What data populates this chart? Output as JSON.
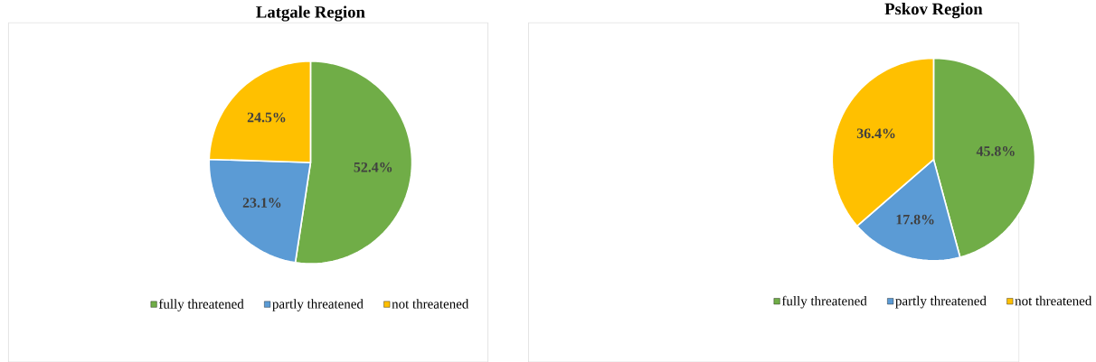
{
  "chart_data": [
    {
      "type": "pie",
      "title": "Latgale Region",
      "categories": [
        "fully threatened",
        "partly threatened",
        "not threatened"
      ],
      "values": [
        52.4,
        23.1,
        24.5
      ],
      "value_labels": [
        "52.4%",
        "23.1%",
        "24.5%"
      ],
      "colors": [
        "#70ad47",
        "#5b9bd5",
        "#ffc000"
      ],
      "legend": "bottom"
    },
    {
      "type": "pie",
      "title": "Pskov Region",
      "categories": [
        "fully threatened",
        "partly threatened",
        "not threatened"
      ],
      "values": [
        45.8,
        17.8,
        36.4
      ],
      "value_labels": [
        "45.8%",
        "17.8%",
        "36.4%"
      ],
      "colors": [
        "#70ad47",
        "#5b9bd5",
        "#ffc000"
      ],
      "legend": "bottom"
    }
  ]
}
